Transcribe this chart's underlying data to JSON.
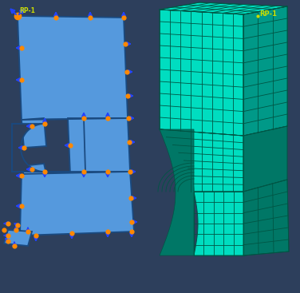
{
  "bg_color": "#2d3f5c",
  "left_shape_color": "#5599dd",
  "left_shape_edge_color": "#1a4a80",
  "mesh_color": "#00ddc0",
  "mesh_edge_color": "#005544",
  "mesh_dark_color": "#007766",
  "mesh_side_color": "#009988",
  "orange_dot_color": "#ff8800",
  "blue_arrow_color": "#2244ff",
  "label_color": "#ccdd00",
  "label_text": "RP-1",
  "fig_width": 3.76,
  "fig_height": 3.67,
  "dpi": 100
}
